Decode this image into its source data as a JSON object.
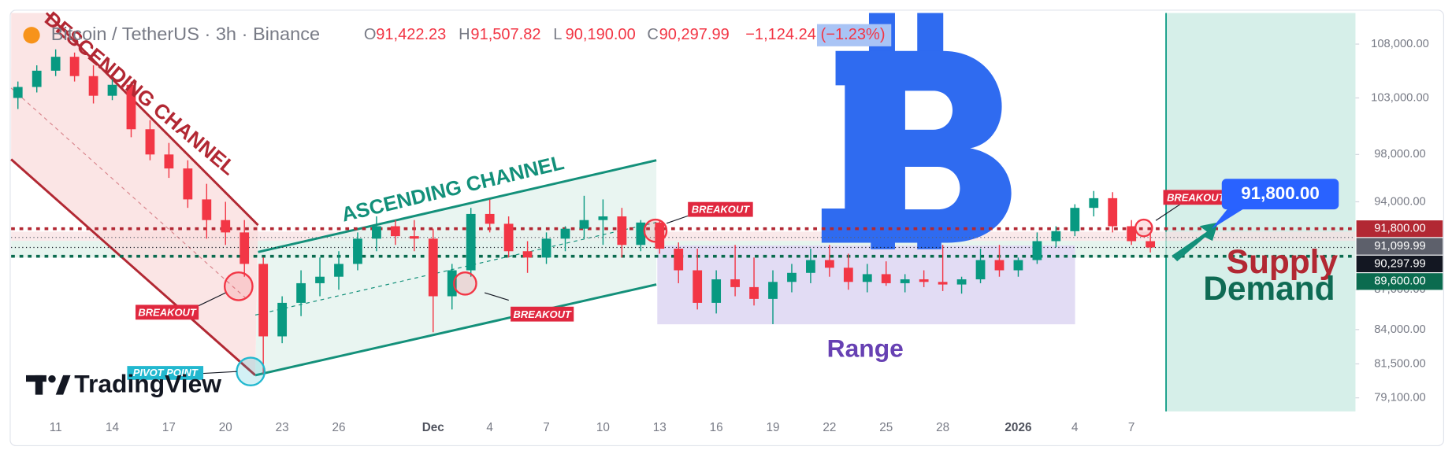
{
  "header": {
    "title": "Bitcoin / TetherUS · 3h · Binance",
    "ohlc": [
      {
        "key": "O",
        "value": "91,422.23"
      },
      {
        "key": "H",
        "value": "91,507.82"
      },
      {
        "key": "L",
        "value": "90,190.00"
      },
      {
        "key": "C",
        "value": "90,297.99"
      }
    ],
    "change": "−1,124.24",
    "change_pct": "(−1.23%)"
  },
  "logo": "TradingView",
  "annotations": {
    "descending": "DESCENDING CHANNEL",
    "ascending": "ASCENDING CHANNEL",
    "breakouts": [
      "BREAKOUT",
      "BREAKOUT",
      "BREAKOUT",
      "BREAKOUT"
    ],
    "pivot": "PIVOT POINT",
    "range": "Range",
    "supply": "Supply",
    "demand": "Demand",
    "target": "91,800.00"
  },
  "chart_data": {
    "type": "candlestick",
    "log_scale": true,
    "grid": false,
    "up_color": "#089981",
    "down_color": "#f23645",
    "categories": [
      null,
      null,
      "11",
      null,
      null,
      "14",
      null,
      null,
      "17",
      null,
      null,
      "20",
      null,
      null,
      "23",
      null,
      null,
      "26",
      null,
      null,
      null,
      null,
      "Dec",
      null,
      null,
      "4",
      null,
      null,
      "7",
      null,
      null,
      "10",
      null,
      null,
      "13",
      null,
      null,
      "16",
      null,
      null,
      "19",
      null,
      null,
      "22",
      null,
      null,
      "25",
      null,
      null,
      "28",
      null,
      null,
      null,
      "2026",
      null,
      null,
      "4",
      null,
      null,
      "7",
      null
    ],
    "open": [
      103000,
      104000,
      105500,
      106800,
      105000,
      103200,
      104200,
      100200,
      98000,
      96800,
      94200,
      92500,
      91500,
      89000,
      83500,
      86000,
      87500,
      88000,
      89000,
      91000,
      92000,
      91200,
      91000,
      86500,
      88500,
      93000,
      92200,
      90000,
      89500,
      91000,
      91800,
      92500,
      92800,
      90500,
      92300,
      90200,
      88500,
      86000,
      87800,
      87200,
      86300,
      87600,
      88300,
      89300,
      88700,
      87600,
      88200,
      87500,
      87800,
      87600,
      87400,
      87800,
      89300,
      88500,
      89300,
      90800,
      91600,
      93500,
      94300,
      92000,
      90800
    ],
    "high": [
      104500,
      106000,
      107500,
      107200,
      106000,
      104800,
      104500,
      101000,
      99000,
      97500,
      95500,
      94000,
      92500,
      89500,
      86500,
      88500,
      89500,
      90000,
      91500,
      92800,
      92500,
      92500,
      91800,
      89000,
      93500,
      94200,
      92800,
      90800,
      91500,
      92000,
      94500,
      94200,
      93500,
      92500,
      92500,
      90700,
      90200,
      88500,
      90500,
      89500,
      88500,
      89000,
      90200,
      90500,
      89800,
      89000,
      89200,
      88200,
      88500,
      90500,
      88000,
      90200,
      90500,
      89500,
      91500,
      92000,
      93800,
      94900,
      94800,
      92500,
      91500
    ],
    "low": [
      102000,
      103500,
      105000,
      104500,
      102500,
      102800,
      99500,
      97500,
      96000,
      93500,
      91000,
      90500,
      88000,
      80800,
      83000,
      85000,
      86500,
      87000,
      88500,
      90000,
      90500,
      90000,
      83800,
      85500,
      88000,
      91500,
      89500,
      88300,
      89000,
      90000,
      91000,
      90500,
      89500,
      90000,
      89800,
      87500,
      85500,
      85200,
      86500,
      85800,
      84400,
      86800,
      87500,
      88000,
      87000,
      86800,
      87300,
      86800,
      87200,
      86900,
      86700,
      87500,
      88000,
      88000,
      89000,
      90300,
      91200,
      92800,
      91500,
      90500,
      89900
    ],
    "close": [
      104000,
      105500,
      106800,
      105000,
      103200,
      104200,
      100200,
      98000,
      96800,
      94200,
      92500,
      91500,
      89000,
      83500,
      86000,
      87500,
      88000,
      89000,
      91000,
      92000,
      91200,
      91000,
      86500,
      88500,
      93000,
      92200,
      90000,
      89500,
      91000,
      91800,
      92500,
      92800,
      90500,
      92300,
      90200,
      88500,
      86000,
      87800,
      87200,
      86300,
      87600,
      88300,
      89300,
      88700,
      87600,
      88200,
      87500,
      87800,
      87600,
      87400,
      87800,
      89300,
      88500,
      89300,
      90800,
      91600,
      93500,
      94300,
      92000,
      90800,
      90297.99
    ],
    "ylim": [
      78100,
      111000
    ],
    "yticks": [
      {
        "value": 108000,
        "label": "108,000.00"
      },
      {
        "value": 103000,
        "label": "103,000.00"
      },
      {
        "value": 98000,
        "label": "98,000.00"
      },
      {
        "value": 94000,
        "label": "94,000.00"
      },
      {
        "value": 87000,
        "label": "87,000.00"
      },
      {
        "value": 84000,
        "label": "84,000.00"
      },
      {
        "value": 81500,
        "label": "81,500.00"
      },
      {
        "value": 79100,
        "label": "79,100.00"
      }
    ],
    "price_lines": [
      {
        "value": 91800,
        "label": "91,800.00",
        "color": "#b22833"
      },
      {
        "value": 91099.99,
        "label": "91,099.99",
        "color": "#5d606b"
      },
      {
        "value": 90297.99,
        "label": "90,297.99",
        "color": "#131722"
      },
      {
        "value": 89600,
        "label": "89,600.00",
        "color": "#0b6b4f"
      }
    ]
  }
}
